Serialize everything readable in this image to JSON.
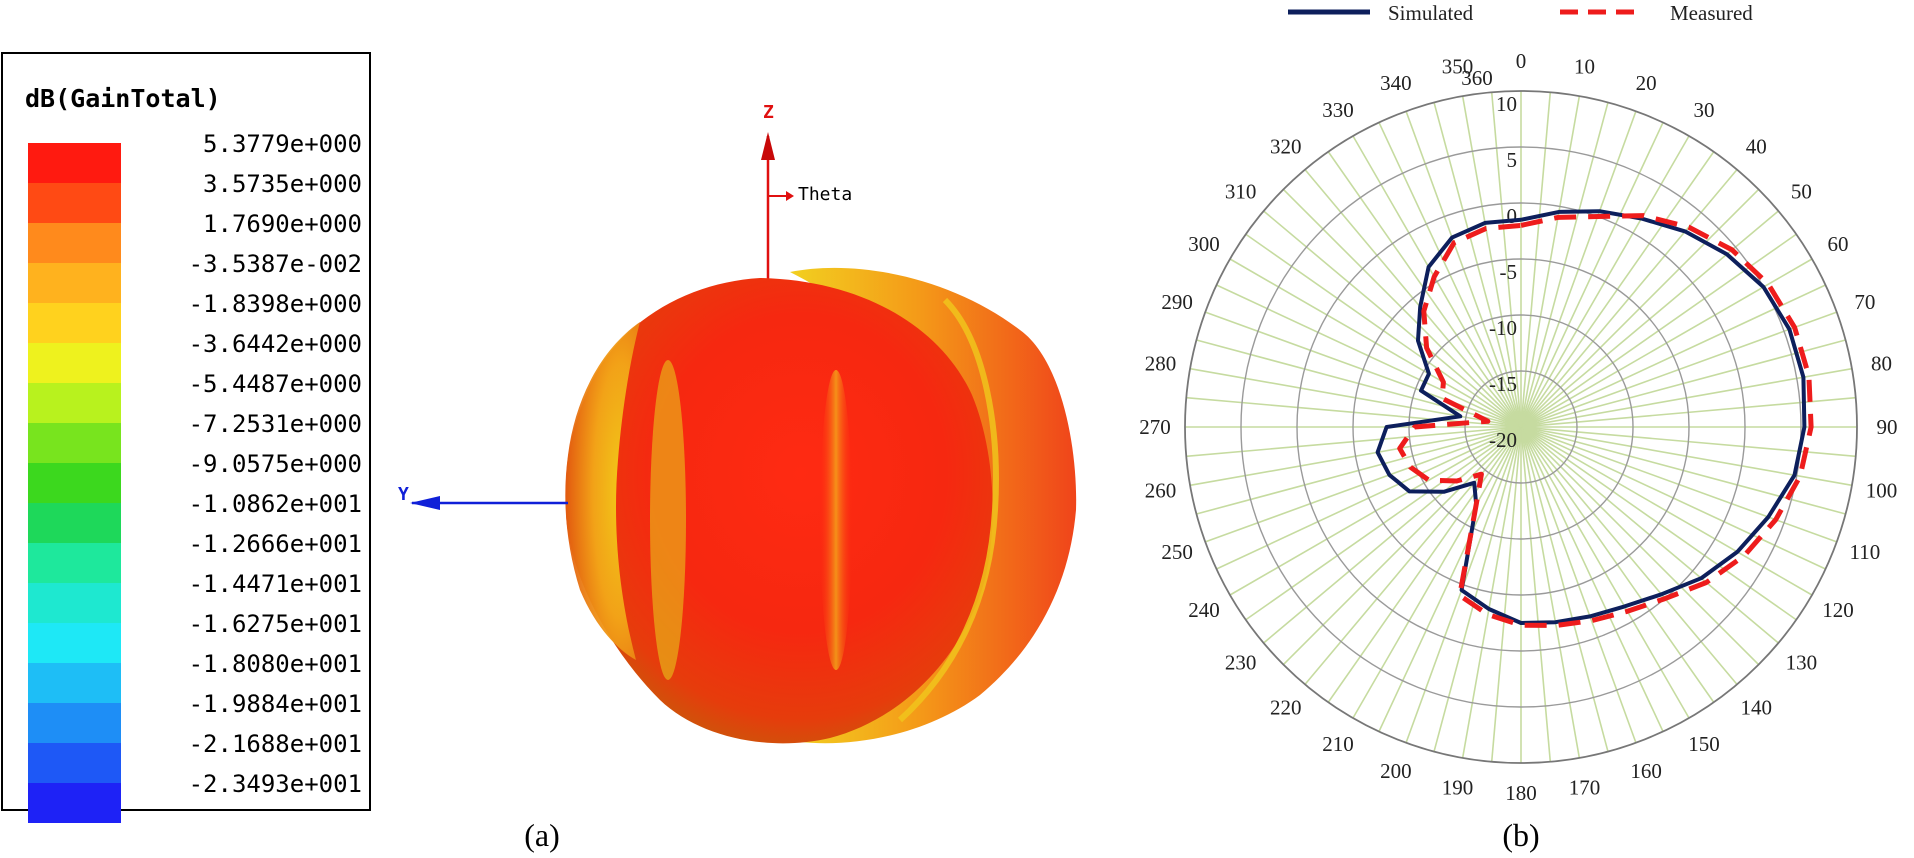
{
  "panel_a": {
    "caption": "(a)",
    "colorbar": {
      "title": "dB(GainTotal)",
      "labels": [
        "5.3779e+000",
        "3.5735e+000",
        "1.7690e+000",
        "-3.5387e-002",
        "-1.8398e+000",
        "-3.6442e+000",
        "-5.4487e+000",
        "-7.2531e+000",
        "-9.0575e+000",
        "-1.0862e+001",
        "-1.2666e+001",
        "-1.4471e+001",
        "-1.6275e+001",
        "-1.8080e+001",
        "-1.9884e+001",
        "-2.1688e+001",
        "-2.3493e+001"
      ],
      "colors": [
        "#ff1a10",
        "#ff4a14",
        "#ff8a1c",
        "#ffb21e",
        "#ffd21e",
        "#eef21e",
        "#b8f21e",
        "#78e41e",
        "#3cd81e",
        "#1ed85a",
        "#1ee89c",
        "#1ee8d0",
        "#1ee8f6",
        "#1ebef6",
        "#1e8ef6",
        "#1e58f6",
        "#1e22f6"
      ]
    },
    "axes": {
      "z_label": "Z",
      "y_label": "Y",
      "theta_label": "Theta"
    }
  },
  "chart_data": {
    "type": "polar",
    "caption": "(b)",
    "angle_ticks": [
      0,
      10,
      20,
      30,
      40,
      50,
      60,
      70,
      80,
      90,
      100,
      110,
      120,
      130,
      140,
      150,
      160,
      170,
      180,
      190,
      200,
      210,
      220,
      230,
      240,
      250,
      260,
      270,
      280,
      290,
      300,
      310,
      320,
      330,
      340,
      350,
      360
    ],
    "radial_ticks": [
      10,
      5,
      0,
      -5,
      -10,
      -15,
      -20
    ],
    "rlim": [
      -20,
      10
    ],
    "angle_direction": "clockwise",
    "zero_location": "top",
    "legend": {
      "placement": "top"
    },
    "series": [
      {
        "name": "Simulated",
        "color": "#0d1f5c",
        "style": "solid",
        "angles": [
          0,
          10,
          20,
          30,
          40,
          50,
          60,
          70,
          80,
          90,
          100,
          110,
          120,
          130,
          140,
          150,
          160,
          170,
          180,
          190,
          200,
          210,
          220,
          230,
          240,
          250,
          260,
          270,
          280,
          290,
          300,
          310,
          320,
          330,
          340,
          350,
          360
        ],
        "values": [
          -1.5,
          -0.5,
          0.5,
          1.5,
          2.8,
          4.0,
          5.0,
          5.5,
          5.6,
          5.3,
          4.8,
          3.5,
          2.3,
          1.0,
          -0.5,
          -1.5,
          -2.0,
          -2.3,
          -2.5,
          -3.5,
          -4.5,
          -12.0,
          -13.5,
          -11.0,
          -8.5,
          -7.5,
          -7.0,
          -8.0,
          -14.5,
          -10.5,
          -10.5,
          -8.0,
          -6.0,
          -3.5,
          -2.0,
          -1.5,
          -1.5
        ]
      },
      {
        "name": "Measured",
        "color": "#ee1c1c",
        "style": "dashed",
        "angles": [
          0,
          10,
          20,
          30,
          40,
          50,
          60,
          70,
          80,
          90,
          100,
          110,
          120,
          130,
          140,
          150,
          160,
          170,
          180,
          190,
          200,
          210,
          220,
          230,
          240,
          250,
          260,
          270,
          280,
          290,
          300,
          310,
          320,
          330,
          340,
          350,
          360
        ],
        "values": [
          -2.0,
          -1.0,
          0.0,
          1.8,
          3.3,
          4.6,
          5.5,
          6.0,
          6.1,
          5.9,
          5.3,
          4.2,
          3.0,
          1.6,
          0.0,
          -1.0,
          -1.6,
          -2.0,
          -2.3,
          -3.0,
          -4.0,
          -12.0,
          -14.5,
          -12.5,
          -10.5,
          -9.5,
          -9.0,
          -10.5,
          -17.0,
          -12.5,
          -12.0,
          -9.0,
          -6.5,
          -4.5,
          -2.5,
          -2.0,
          -2.0
        ]
      }
    ]
  }
}
